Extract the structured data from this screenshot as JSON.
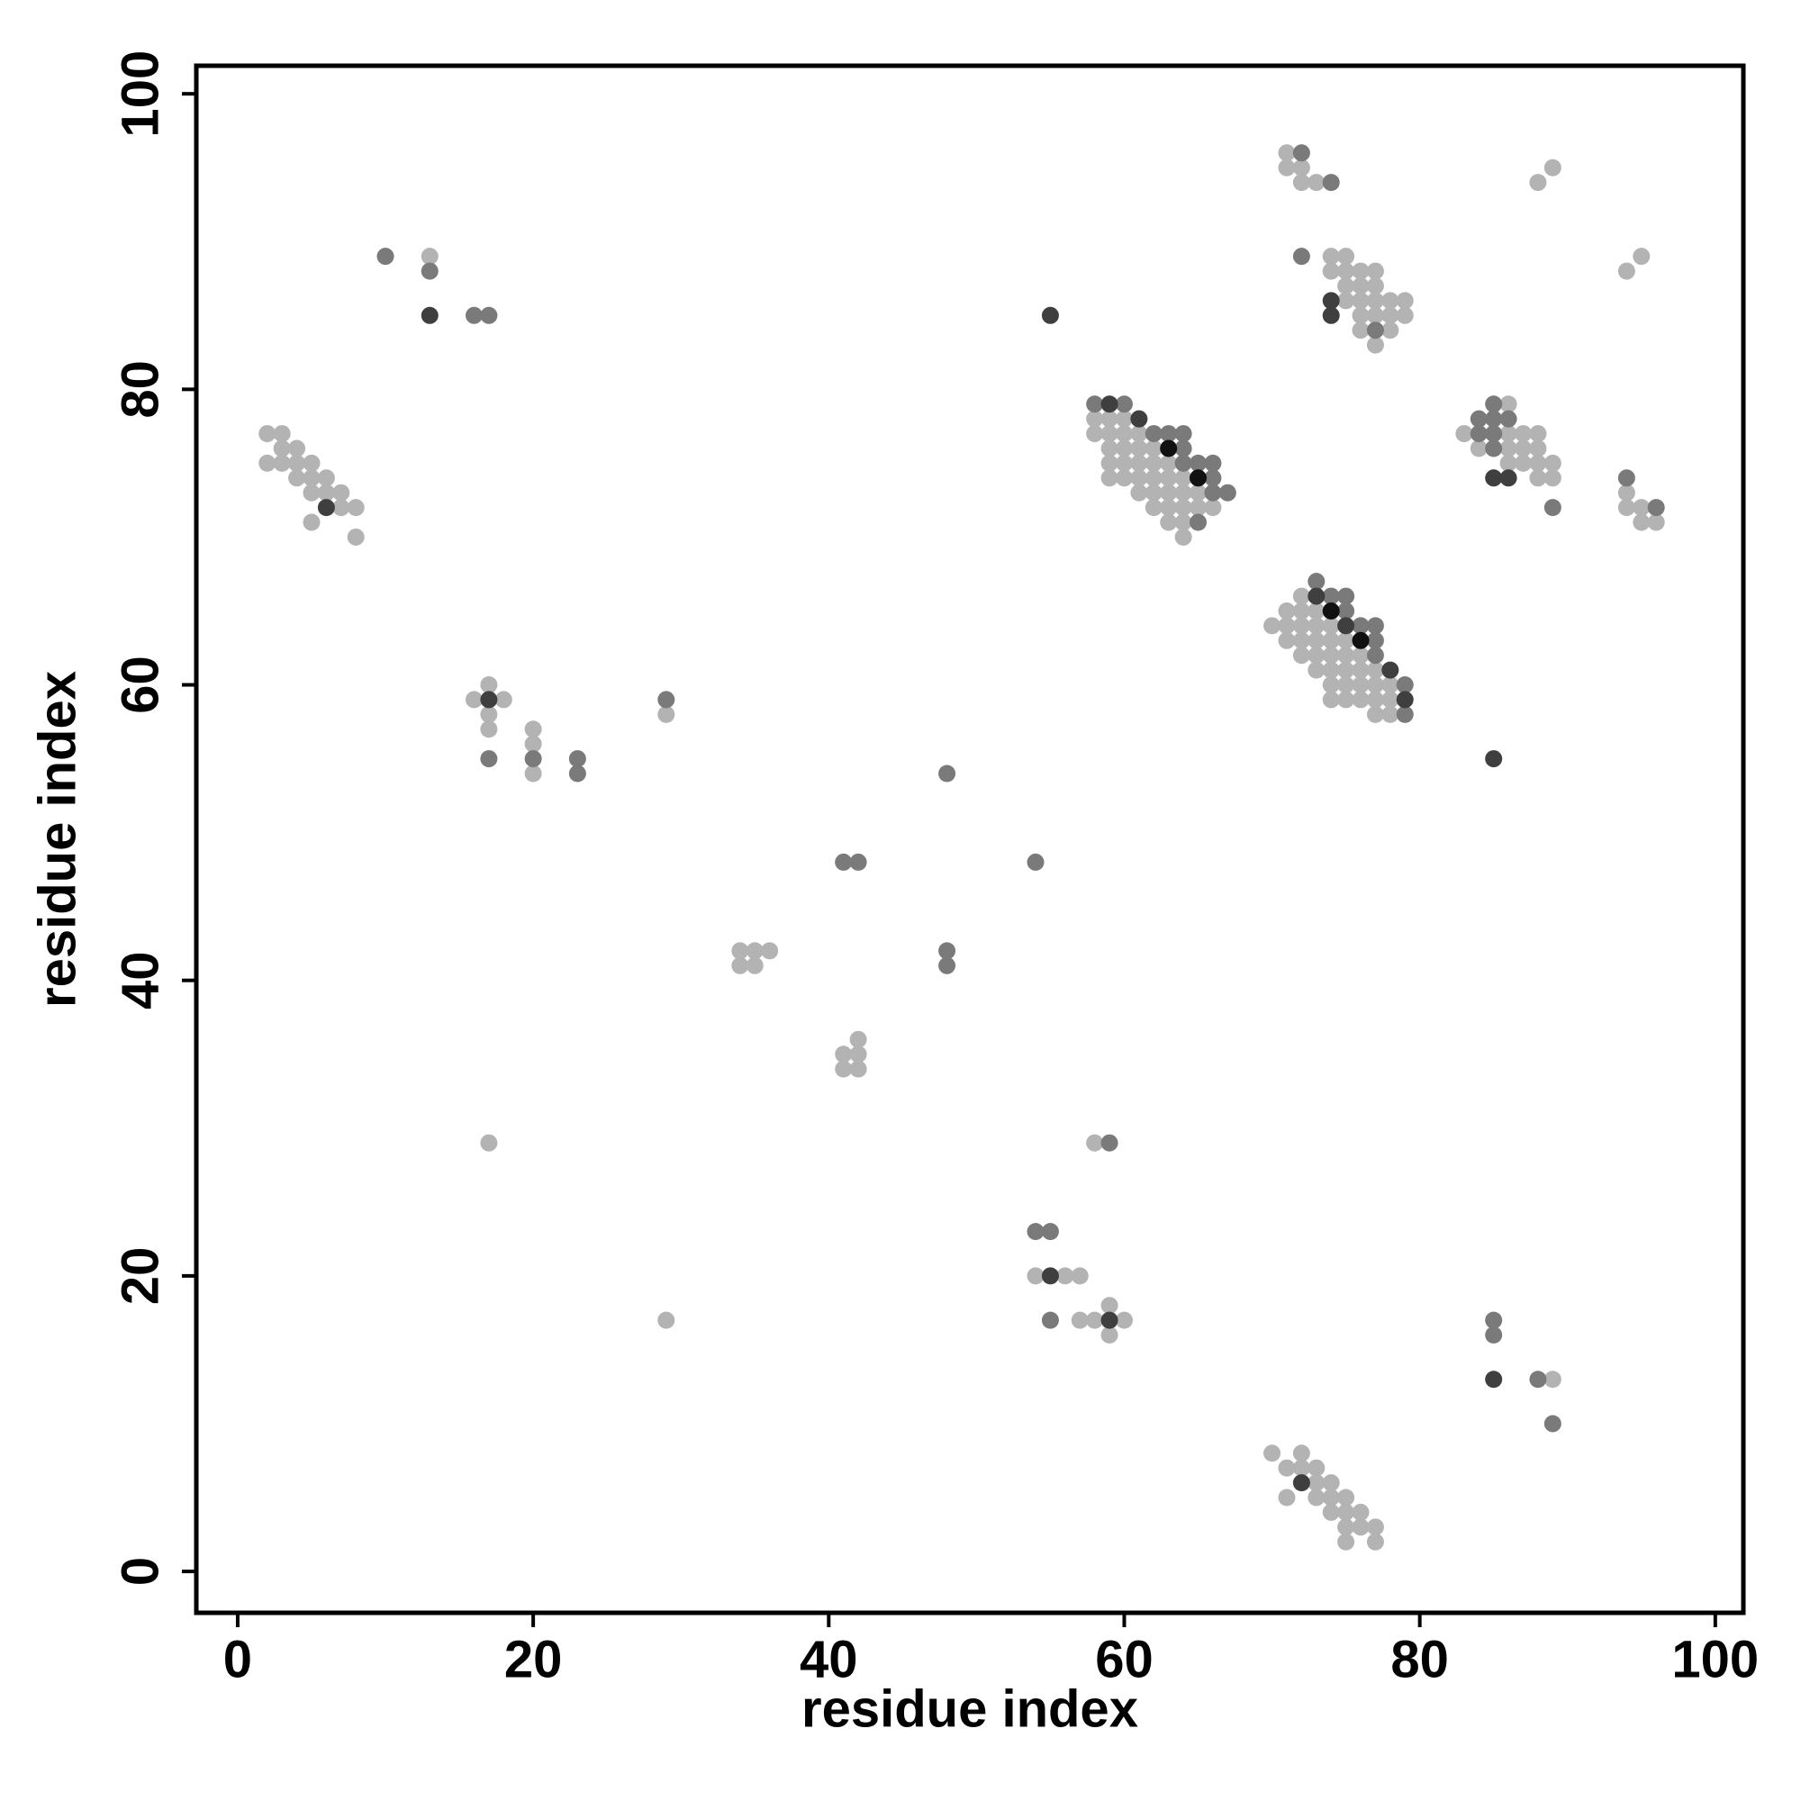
{
  "chart_data": {
    "type": "scatter",
    "x_label": "residue index",
    "y_label": "residue index",
    "xlim": [
      -2.8,
      101.9
    ],
    "ylim": [
      -2.8,
      101.9
    ],
    "xticks": [
      0,
      20,
      40,
      60,
      80,
      100
    ],
    "yticks": [
      0,
      20,
      40,
      60,
      80,
      100
    ],
    "grid": false,
    "series": [
      {
        "color": "#b3b3b3",
        "x": [
          2,
          3,
          2,
          3,
          4,
          3,
          4,
          4,
          5,
          5,
          5,
          6,
          6,
          7,
          7,
          8,
          5,
          8,
          13,
          16,
          17,
          18,
          17,
          17,
          20,
          20,
          20,
          29,
          34,
          35,
          36,
          34,
          35,
          41,
          42,
          42,
          41,
          42,
          17,
          58,
          29,
          54,
          56,
          57,
          57,
          58,
          59,
          60,
          59,
          89,
          70,
          72,
          71,
          72,
          73,
          73,
          74,
          71,
          73,
          74,
          75,
          74,
          75,
          76,
          75,
          76,
          77,
          75,
          77,
          71,
          71,
          72,
          72,
          73,
          74,
          75,
          74,
          75,
          76,
          77,
          75,
          76,
          77,
          75,
          76,
          77,
          78,
          79,
          76,
          77,
          78,
          79,
          76,
          78,
          77,
          88,
          89,
          94,
          95,
          58,
          59,
          60,
          58,
          59,
          60,
          61,
          59,
          60,
          61,
          62,
          59,
          60,
          61,
          62,
          63,
          59,
          60,
          61,
          62,
          63,
          64,
          61,
          62,
          63,
          64,
          65,
          62,
          63,
          64,
          65,
          66,
          63,
          64,
          64,
          72,
          71,
          72,
          73,
          70,
          71,
          72,
          73,
          74,
          71,
          72,
          73,
          74,
          75,
          72,
          73,
          74,
          75,
          76,
          73,
          74,
          75,
          76,
          77,
          74,
          75,
          76,
          77,
          78,
          74,
          75,
          76,
          77,
          78,
          77,
          78,
          86,
          83,
          86,
          87,
          88,
          84,
          86,
          87,
          88,
          86,
          87,
          88,
          89,
          88,
          89,
          94,
          94,
          95,
          95,
          96
        ],
        "y": [
          77,
          77,
          75,
          76,
          76,
          75,
          75,
          74,
          75,
          74,
          73,
          74,
          73,
          73,
          72,
          72,
          71,
          70,
          89,
          59,
          60,
          59,
          58,
          57,
          57,
          56,
          54,
          58,
          42,
          42,
          42,
          41,
          41,
          35,
          36,
          35,
          34,
          34,
          29,
          29,
          17,
          20,
          20,
          20,
          17,
          17,
          18,
          17,
          16,
          13,
          8,
          8,
          7,
          7,
          7,
          6,
          6,
          5,
          5,
          5,
          5,
          4,
          4,
          4,
          3,
          3,
          3,
          2,
          2,
          96,
          95,
          95,
          94,
          94,
          89,
          89,
          88,
          88,
          88,
          88,
          87,
          87,
          87,
          86,
          86,
          86,
          86,
          86,
          85,
          85,
          85,
          85,
          84,
          84,
          83,
          94,
          95,
          88,
          89,
          78,
          78,
          78,
          77,
          77,
          77,
          77,
          76,
          76,
          76,
          76,
          75,
          75,
          75,
          75,
          75,
          74,
          74,
          74,
          74,
          74,
          74,
          73,
          73,
          73,
          73,
          73,
          72,
          72,
          72,
          72,
          72,
          71,
          71,
          70,
          66,
          65,
          65,
          65,
          64,
          64,
          64,
          64,
          64,
          63,
          63,
          63,
          63,
          63,
          62,
          62,
          62,
          62,
          62,
          61,
          61,
          61,
          61,
          61,
          60,
          60,
          60,
          60,
          60,
          59,
          59,
          59,
          59,
          59,
          58,
          58,
          79,
          77,
          77,
          77,
          77,
          76,
          76,
          76,
          76,
          75,
          75,
          75,
          75,
          74,
          74,
          73,
          72,
          72,
          71,
          71
        ]
      },
      {
        "color": "#7a7a7a",
        "x": [
          10,
          13,
          16,
          17,
          17,
          23,
          23,
          29,
          48,
          41,
          42,
          54,
          48,
          48,
          59,
          54,
          55,
          55,
          85,
          85,
          88,
          89,
          72,
          74,
          72,
          77,
          58,
          60,
          62,
          63,
          64,
          64,
          64,
          65,
          66,
          66,
          66,
          67,
          65,
          73,
          74,
          75,
          75,
          76,
          77,
          77,
          77,
          79,
          79,
          85,
          84,
          85,
          86,
          84,
          85,
          85,
          89,
          94,
          96,
          20
        ],
        "y": [
          89,
          88,
          85,
          85,
          55,
          55,
          54,
          59,
          54,
          48,
          48,
          48,
          42,
          41,
          29,
          23,
          23,
          17,
          17,
          16,
          13,
          10,
          96,
          94,
          89,
          84,
          79,
          79,
          77,
          77,
          77,
          76,
          75,
          75,
          75,
          74,
          73,
          73,
          71,
          67,
          66,
          66,
          65,
          64,
          64,
          63,
          62,
          60,
          58,
          79,
          78,
          78,
          78,
          77,
          77,
          76,
          72,
          74,
          72,
          55
        ]
      },
      {
        "color": "#3f3f3f",
        "x": [
          6,
          13,
          17,
          55,
          55,
          59,
          85,
          72,
          74,
          74,
          59,
          61,
          73,
          75,
          78,
          79,
          85,
          86,
          85
        ],
        "y": [
          72,
          85,
          59,
          85,
          20,
          17,
          13,
          6,
          86,
          85,
          79,
          78,
          66,
          64,
          61,
          59,
          74,
          74,
          55
        ]
      },
      {
        "color": "#111111",
        "x": [
          63,
          65,
          74,
          76
        ],
        "y": [
          76,
          74,
          65,
          63
        ]
      }
    ]
  }
}
